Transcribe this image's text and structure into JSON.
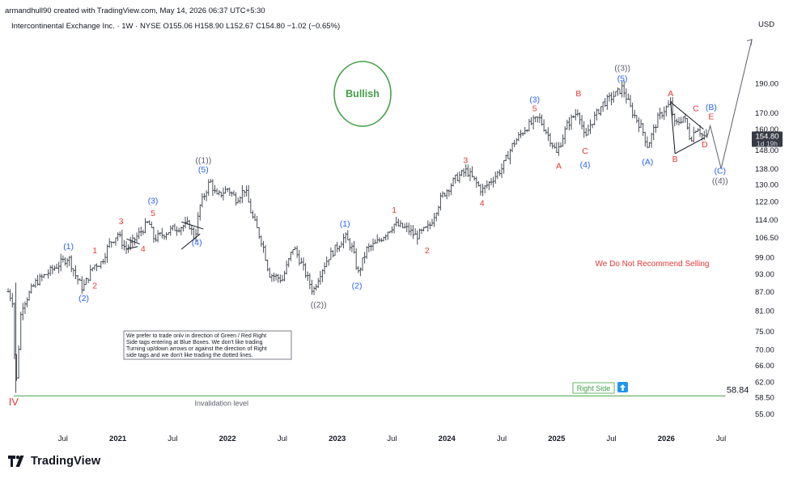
{
  "header": {
    "created_by": "armandhull90 created with TradingView.com, May 14, 2026 06:37 UTC+5:30",
    "legend": "Intercontinental Exchange Inc. · 1W · NYSE  O155.06  H158.90  L152.67  C154.80  −1.02 (−0.65%)"
  },
  "colors": {
    "bars": "#4a4f58",
    "blue_label": "#2962ff",
    "red_label": "#e53935",
    "green": "#43a047",
    "black_label": "#5d606b",
    "price_tag_bg": "#363a45"
  },
  "chart_data": {
    "type": "bar",
    "title": "Intercontinental Exchange Inc. · 1W · NYSE",
    "currency": "USD",
    "scale": "log",
    "ylim": [
      52,
      230
    ],
    "y_ticks": [
      55.0,
      58.5,
      62.0,
      66.0,
      70.0,
      75.0,
      81.0,
      87.0,
      93.0,
      99.0,
      106.5,
      114.0,
      122.0,
      130.0,
      138.0,
      148.0,
      160.0,
      170.0,
      190.0
    ],
    "x_ticks": [
      {
        "label": "Jul",
        "t": 2020.5,
        "bold": false
      },
      {
        "label": "2021",
        "t": 2021.0,
        "bold": true
      },
      {
        "label": "Jul",
        "t": 2021.5,
        "bold": false
      },
      {
        "label": "2022",
        "t": 2022.0,
        "bold": true
      },
      {
        "label": "Jul",
        "t": 2022.5,
        "bold": false
      },
      {
        "label": "2023",
        "t": 2023.0,
        "bold": true
      },
      {
        "label": "Jul",
        "t": 2023.5,
        "bold": false
      },
      {
        "label": "2024",
        "t": 2024.0,
        "bold": true
      },
      {
        "label": "Jul",
        "t": 2024.5,
        "bold": false
      },
      {
        "label": "2025",
        "t": 2025.0,
        "bold": true
      },
      {
        "label": "Jul",
        "t": 2025.5,
        "bold": false
      },
      {
        "label": "2026",
        "t": 2026.0,
        "bold": true
      },
      {
        "label": "Jul",
        "t": 2026.5,
        "bold": false
      }
    ],
    "ohlc_anchors": [
      [
        2020.0,
        87
      ],
      [
        2020.04,
        84
      ],
      [
        2020.07,
        60
      ],
      [
        2020.12,
        82
      ],
      [
        2020.25,
        90
      ],
      [
        2020.45,
        96
      ],
      [
        2020.55,
        99
      ],
      [
        2020.62,
        92
      ],
      [
        2020.68,
        88
      ],
      [
        2020.78,
        96
      ],
      [
        2020.85,
        97
      ],
      [
        2020.92,
        104
      ],
      [
        2021.0,
        108
      ],
      [
        2021.07,
        102
      ],
      [
        2021.12,
        104
      ],
      [
        2021.28,
        113
      ],
      [
        2021.33,
        106
      ],
      [
        2021.5,
        110
      ],
      [
        2021.65,
        112
      ],
      [
        2021.7,
        106
      ],
      [
        2021.75,
        120
      ],
      [
        2021.84,
        132
      ],
      [
        2021.9,
        124
      ],
      [
        2022.0,
        128
      ],
      [
        2022.08,
        123
      ],
      [
        2022.16,
        128
      ],
      [
        2022.22,
        116
      ],
      [
        2022.32,
        104
      ],
      [
        2022.38,
        93
      ],
      [
        2022.5,
        91
      ],
      [
        2022.6,
        103
      ],
      [
        2022.68,
        96
      ],
      [
        2022.78,
        87
      ],
      [
        2022.84,
        93
      ],
      [
        2022.92,
        99
      ],
      [
        2023.0,
        103
      ],
      [
        2023.07,
        107
      ],
      [
        2023.14,
        102
      ],
      [
        2023.19,
        93
      ],
      [
        2023.27,
        102
      ],
      [
        2023.35,
        104
      ],
      [
        2023.52,
        112
      ],
      [
        2023.64,
        110
      ],
      [
        2023.72,
        107
      ],
      [
        2023.84,
        111
      ],
      [
        2023.95,
        124
      ],
      [
        2024.08,
        133
      ],
      [
        2024.18,
        137
      ],
      [
        2024.32,
        127
      ],
      [
        2024.5,
        138
      ],
      [
        2024.6,
        151
      ],
      [
        2024.72,
        161
      ],
      [
        2024.84,
        167
      ],
      [
        2024.95,
        153
      ],
      [
        2025.0,
        146
      ],
      [
        2025.1,
        163
      ],
      [
        2025.2,
        172
      ],
      [
        2025.26,
        153
      ],
      [
        2025.3,
        162
      ],
      [
        2025.42,
        176
      ],
      [
        2025.55,
        183
      ],
      [
        2025.6,
        187
      ],
      [
        2025.68,
        172
      ],
      [
        2025.78,
        160
      ],
      [
        2025.83,
        150
      ],
      [
        2025.92,
        166
      ],
      [
        2025.98,
        172
      ],
      [
        2026.04,
        176
      ],
      [
        2026.08,
        162
      ],
      [
        2026.16,
        168
      ],
      [
        2026.22,
        154
      ],
      [
        2026.28,
        162
      ],
      [
        2026.33,
        156
      ],
      [
        2026.37,
        155
      ]
    ],
    "projection": [
      [
        2026.37,
        154.8
      ],
      [
        2026.4,
        162
      ],
      [
        2026.5,
        138
      ],
      [
        2026.78,
        224
      ]
    ],
    "triangle_left": [
      [
        2021.08,
        106
      ],
      [
        2021.2,
        104
      ],
      [
        2021.08,
        102
      ],
      [
        2021.18,
        103
      ]
    ],
    "triangle_right": [
      [
        2021.58,
        113
      ],
      [
        2021.78,
        110
      ],
      [
        2021.58,
        102
      ],
      [
        2021.75,
        108
      ]
    ],
    "triangle_2026": [
      [
        2026.04,
        177
      ],
      [
        2026.34,
        160
      ],
      [
        2026.08,
        146
      ],
      [
        2026.35,
        155
      ]
    ],
    "wave_labels": [
      {
        "text": "IV",
        "t": 2020.05,
        "p": 56.8,
        "kind": "red",
        "size": 13
      },
      {
        "text": "(1)",
        "t": 2020.55,
        "p": 102,
        "kind": "blue"
      },
      {
        "text": "(2)",
        "t": 2020.69,
        "p": 84,
        "kind": "blue"
      },
      {
        "text": "1",
        "t": 2020.79,
        "p": 100.5,
        "kind": "red"
      },
      {
        "text": "2",
        "t": 2020.79,
        "p": 88,
        "kind": "red"
      },
      {
        "text": "3",
        "t": 2021.03,
        "p": 112,
        "kind": "red"
      },
      {
        "text": "4",
        "t": 2021.23,
        "p": 101,
        "kind": "red"
      },
      {
        "text": "(3)",
        "t": 2021.32,
        "p": 121,
        "kind": "blue"
      },
      {
        "text": "5",
        "t": 2021.32,
        "p": 115.5,
        "kind": "red"
      },
      {
        "text": "(4)",
        "t": 2021.72,
        "p": 103.5,
        "kind": "blue"
      },
      {
        "text": "((1))",
        "t": 2021.78,
        "p": 141,
        "kind": "black"
      },
      {
        "text": "(5)",
        "t": 2021.78,
        "p": 136,
        "kind": "blue"
      },
      {
        "text": "((2))",
        "t": 2022.83,
        "p": 82,
        "kind": "black"
      },
      {
        "text": "(1)",
        "t": 2023.07,
        "p": 111,
        "kind": "blue"
      },
      {
        "text": "(2)",
        "t": 2023.18,
        "p": 88,
        "kind": "blue"
      },
      {
        "text": "1",
        "t": 2023.52,
        "p": 117,
        "kind": "red"
      },
      {
        "text": "2",
        "t": 2023.82,
        "p": 100.5,
        "kind": "red"
      },
      {
        "text": "3",
        "t": 2024.17,
        "p": 141,
        "kind": "red"
      },
      {
        "text": "4",
        "t": 2024.32,
        "p": 120,
        "kind": "red"
      },
      {
        "text": "(3)",
        "t": 2024.8,
        "p": 177,
        "kind": "blue"
      },
      {
        "text": "5",
        "t": 2024.8,
        "p": 171,
        "kind": "red"
      },
      {
        "text": "A",
        "t": 2025.02,
        "p": 138,
        "kind": "red"
      },
      {
        "text": "B",
        "t": 2025.2,
        "p": 181,
        "kind": "red"
      },
      {
        "text": "C",
        "t": 2025.26,
        "p": 146,
        "kind": "red"
      },
      {
        "text": "(4)",
        "t": 2025.26,
        "p": 138.5,
        "kind": "blue"
      },
      {
        "text": "((3))",
        "t": 2025.6,
        "p": 199,
        "kind": "black"
      },
      {
        "text": "(5)",
        "t": 2025.6,
        "p": 191.5,
        "kind": "blue"
      },
      {
        "text": "(A)",
        "t": 2025.83,
        "p": 140,
        "kind": "blue"
      },
      {
        "text": "A",
        "t": 2026.04,
        "p": 181,
        "kind": "red"
      },
      {
        "text": "B",
        "t": 2026.08,
        "p": 141.5,
        "kind": "red"
      },
      {
        "text": "C",
        "t": 2026.27,
        "p": 171,
        "kind": "red"
      },
      {
        "text": "D",
        "t": 2026.35,
        "p": 149.5,
        "kind": "red"
      },
      {
        "text": "E",
        "t": 2026.41,
        "p": 166,
        "kind": "red"
      },
      {
        "text": "(B)",
        "t": 2026.41,
        "p": 172,
        "kind": "blue"
      },
      {
        "text": "(C)",
        "t": 2026.49,
        "p": 135.5,
        "kind": "blue"
      },
      {
        "text": "((4))",
        "t": 2026.49,
        "p": 130.5,
        "kind": "black"
      }
    ],
    "annotations": {
      "bullish": "Bullish",
      "no_sell": "We Do Not Recommend Selling",
      "disclaimer": [
        "We prefer to trade onlv in direction of Green / Red Right",
        "Side tags entering at Blue Boxes. We don't like trading",
        "Turning up/down arrows or against the direction of Right",
        "side tags and we don't like trading the dotted lines."
      ],
      "invalidation_label": "Invalidation level",
      "invalidation_value": 58.84,
      "invalidation_text": "58.84",
      "right_side": "Right Side",
      "current_price": "154.80",
      "countdown": "1d 19h"
    }
  },
  "footer": {
    "brand": "TradingView"
  }
}
